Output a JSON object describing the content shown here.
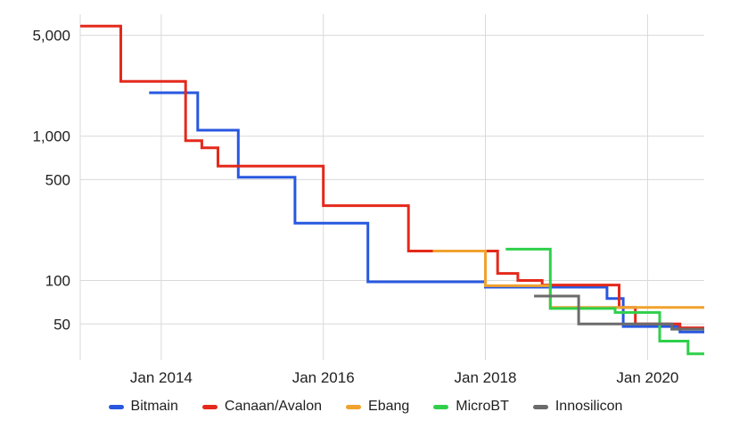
{
  "chart_data": {
    "type": "line",
    "step_interpolation": "step-after",
    "title": "",
    "xlabel": "",
    "ylabel": "",
    "y_scale": "log",
    "grid": true,
    "legend_position": "bottom",
    "x_range": [
      2013.0,
      2020.7
    ],
    "y_range": [
      28,
      7000
    ],
    "x_ticks": [
      {
        "x": 2014.0,
        "label": "Jan 2014"
      },
      {
        "x": 2016.0,
        "label": "Jan 2016"
      },
      {
        "x": 2018.0,
        "label": "Jan 2018"
      },
      {
        "x": 2020.0,
        "label": "Jan 2020"
      }
    ],
    "y_ticks": [
      {
        "v": 5000,
        "label": "5,000"
      },
      {
        "v": 1000,
        "label": "1,000"
      },
      {
        "v": 500,
        "label": "500"
      },
      {
        "v": 100,
        "label": "100"
      },
      {
        "v": 50,
        "label": "50"
      }
    ],
    "grid_color": "#d9d9d9",
    "text_color": "#212121",
    "series": [
      {
        "name": "Bitmain",
        "color": "#2858e0",
        "points": [
          [
            2013.85,
            2000
          ],
          [
            2014.45,
            1100
          ],
          [
            2014.95,
            520
          ],
          [
            2015.65,
            250
          ],
          [
            2016.55,
            98
          ],
          [
            2018.0,
            90
          ],
          [
            2019.5,
            75
          ],
          [
            2019.7,
            48
          ],
          [
            2020.4,
            44
          ]
        ]
      },
      {
        "name": "Canaan/Avalon",
        "color": "#e4291b",
        "points": [
          [
            2013.0,
            5800
          ],
          [
            2013.5,
            2400
          ],
          [
            2014.3,
            930
          ],
          [
            2014.5,
            830
          ],
          [
            2014.7,
            620
          ],
          [
            2016.0,
            330
          ],
          [
            2017.05,
            160
          ],
          [
            2018.15,
            112
          ],
          [
            2018.4,
            100
          ],
          [
            2018.7,
            93
          ],
          [
            2019.65,
            65
          ],
          [
            2019.85,
            50
          ],
          [
            2020.4,
            47
          ]
        ]
      },
      {
        "name": "Ebang",
        "color": "#f0a22e",
        "points": [
          [
            2017.35,
            160
          ],
          [
            2018.0,
            92
          ],
          [
            2018.8,
            65
          ]
        ]
      },
      {
        "name": "MicroBT",
        "color": "#2ed04a",
        "points": [
          [
            2018.25,
            165
          ],
          [
            2018.8,
            64
          ],
          [
            2019.6,
            60
          ],
          [
            2020.15,
            38
          ],
          [
            2020.5,
            31
          ]
        ]
      },
      {
        "name": "Innosilicon",
        "color": "#6b6b6b",
        "points": [
          [
            2018.6,
            78
          ],
          [
            2019.15,
            50
          ],
          [
            2020.3,
            46
          ]
        ]
      }
    ]
  }
}
